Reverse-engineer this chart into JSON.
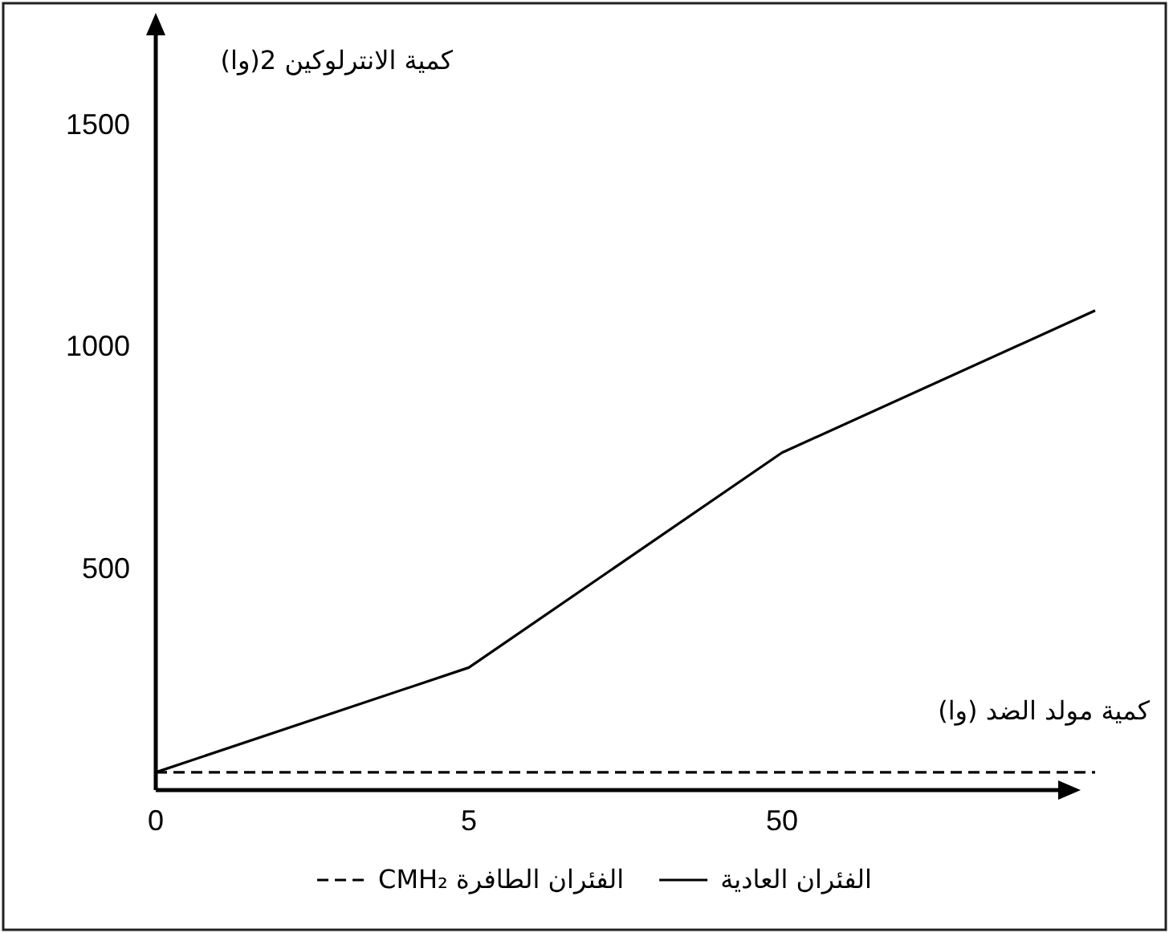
{
  "chart_data": {
    "type": "line",
    "xlabel": "كمية مولد الضد (وا)",
    "ylabel": "كمية الانترلوكين 2(وا)",
    "categories": [
      "0",
      "5",
      "50",
      null
    ],
    "series": [
      {
        "name": "الفئران العادية",
        "color": "#000000",
        "values": [
          40,
          276,
          760,
          1080
        ],
        "line_style": "solid"
      },
      {
        "name": "الفئران الطافرة CMH₂",
        "color": "#000000",
        "values": [
          40,
          40,
          40,
          40
        ],
        "line_style": "dashed"
      }
    ],
    "ylim": [
      0,
      1700
    ],
    "yticks": [
      500,
      1000,
      1500
    ],
    "legend": "bottom"
  }
}
